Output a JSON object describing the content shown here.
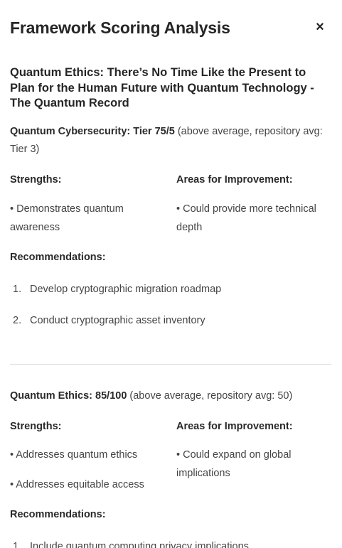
{
  "panel": {
    "title": "Framework Scoring Analysis",
    "close_label": "×"
  },
  "document": {
    "title": "Quantum Ethics: There’s No Time Like the Present to Plan for the Human Future with Quantum Technology - The Quantum Record"
  },
  "frameworks": [
    {
      "score_label": "Quantum Cybersecurity: Tier 75/5",
      "score_note": " (above average, repository avg: Tier 3)",
      "strengths_heading": "Strengths:",
      "improvements_heading": "Areas for Improvement:",
      "strengths": [
        "• Demonstrates quantum awareness"
      ],
      "improvements": [
        "• Could provide more technical depth"
      ],
      "recommendations_heading": "Recommendations:",
      "recommendations": [
        {
          "num": "1.",
          "text": "Develop cryptographic migration roadmap"
        },
        {
          "num": "2.",
          "text": "Conduct cryptographic asset inventory"
        }
      ]
    },
    {
      "score_label": "Quantum Ethics: 85/100",
      "score_note": " (above average, repository avg: 50)",
      "strengths_heading": "Strengths:",
      "improvements_heading": "Areas for Improvement:",
      "strengths": [
        "• Addresses quantum ethics",
        "• Addresses equitable access"
      ],
      "improvements": [
        "• Could expand on global implications"
      ],
      "recommendations_heading": "Recommendations:",
      "recommendations": [
        {
          "num": "1.",
          "text": "Include quantum computing privacy implications"
        }
      ]
    }
  ]
}
